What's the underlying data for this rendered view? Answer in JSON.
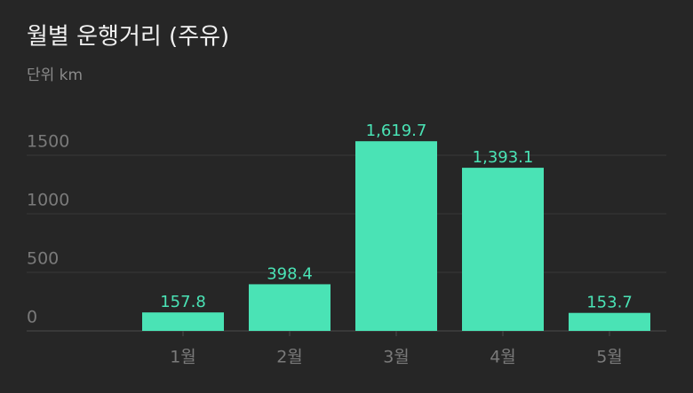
{
  "chart_data": {
    "type": "bar",
    "title": "월별 운행거리 (주유)",
    "subtitle": "단위 km",
    "categories": [
      "1월",
      "2월",
      "3월",
      "4월",
      "5월"
    ],
    "values": [
      157.8,
      398.4,
      1619.7,
      1393.1,
      153.7
    ],
    "value_labels": [
      "157.8",
      "398.4",
      "1,619.7",
      "1,393.1",
      "153.7"
    ],
    "color": "#4ae3b5",
    "ylim": [
      0,
      1700
    ],
    "yticks": [
      0,
      500,
      1000,
      1500
    ],
    "grid": true
  }
}
